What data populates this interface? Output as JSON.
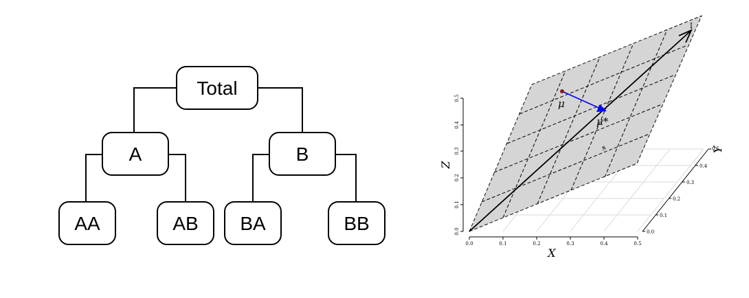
{
  "tree": {
    "nodes": [
      {
        "id": "total",
        "label": "Total"
      },
      {
        "id": "A",
        "label": "A"
      },
      {
        "id": "B",
        "label": "B"
      },
      {
        "id": "AA",
        "label": "AA"
      },
      {
        "id": "AB",
        "label": "AB"
      },
      {
        "id": "BA",
        "label": "BA"
      },
      {
        "id": "BB",
        "label": "BB"
      }
    ]
  },
  "plot3d": {
    "x_label": "X",
    "y_label": "Y",
    "z_label": "Z",
    "x_ticks": [
      "0.0",
      "0.1",
      "0.2",
      "0.3",
      "0.4",
      "0.5"
    ],
    "y_ticks": [
      "0.0",
      "0.1",
      "0.2",
      "0.3",
      "0.4",
      "0.5"
    ],
    "z_ticks": [
      "0.0",
      "0.1",
      "0.2",
      "0.3",
      "0.4",
      "0.5"
    ],
    "plane_label": "𝔰",
    "line_label": "𝔩",
    "mu_label": "μ",
    "mu_star_label": "μ*",
    "colors": {
      "plane_fill": "#d3d3d3",
      "projection_arrow": "#0000ff",
      "mu_point": "#8b1a1a"
    }
  }
}
